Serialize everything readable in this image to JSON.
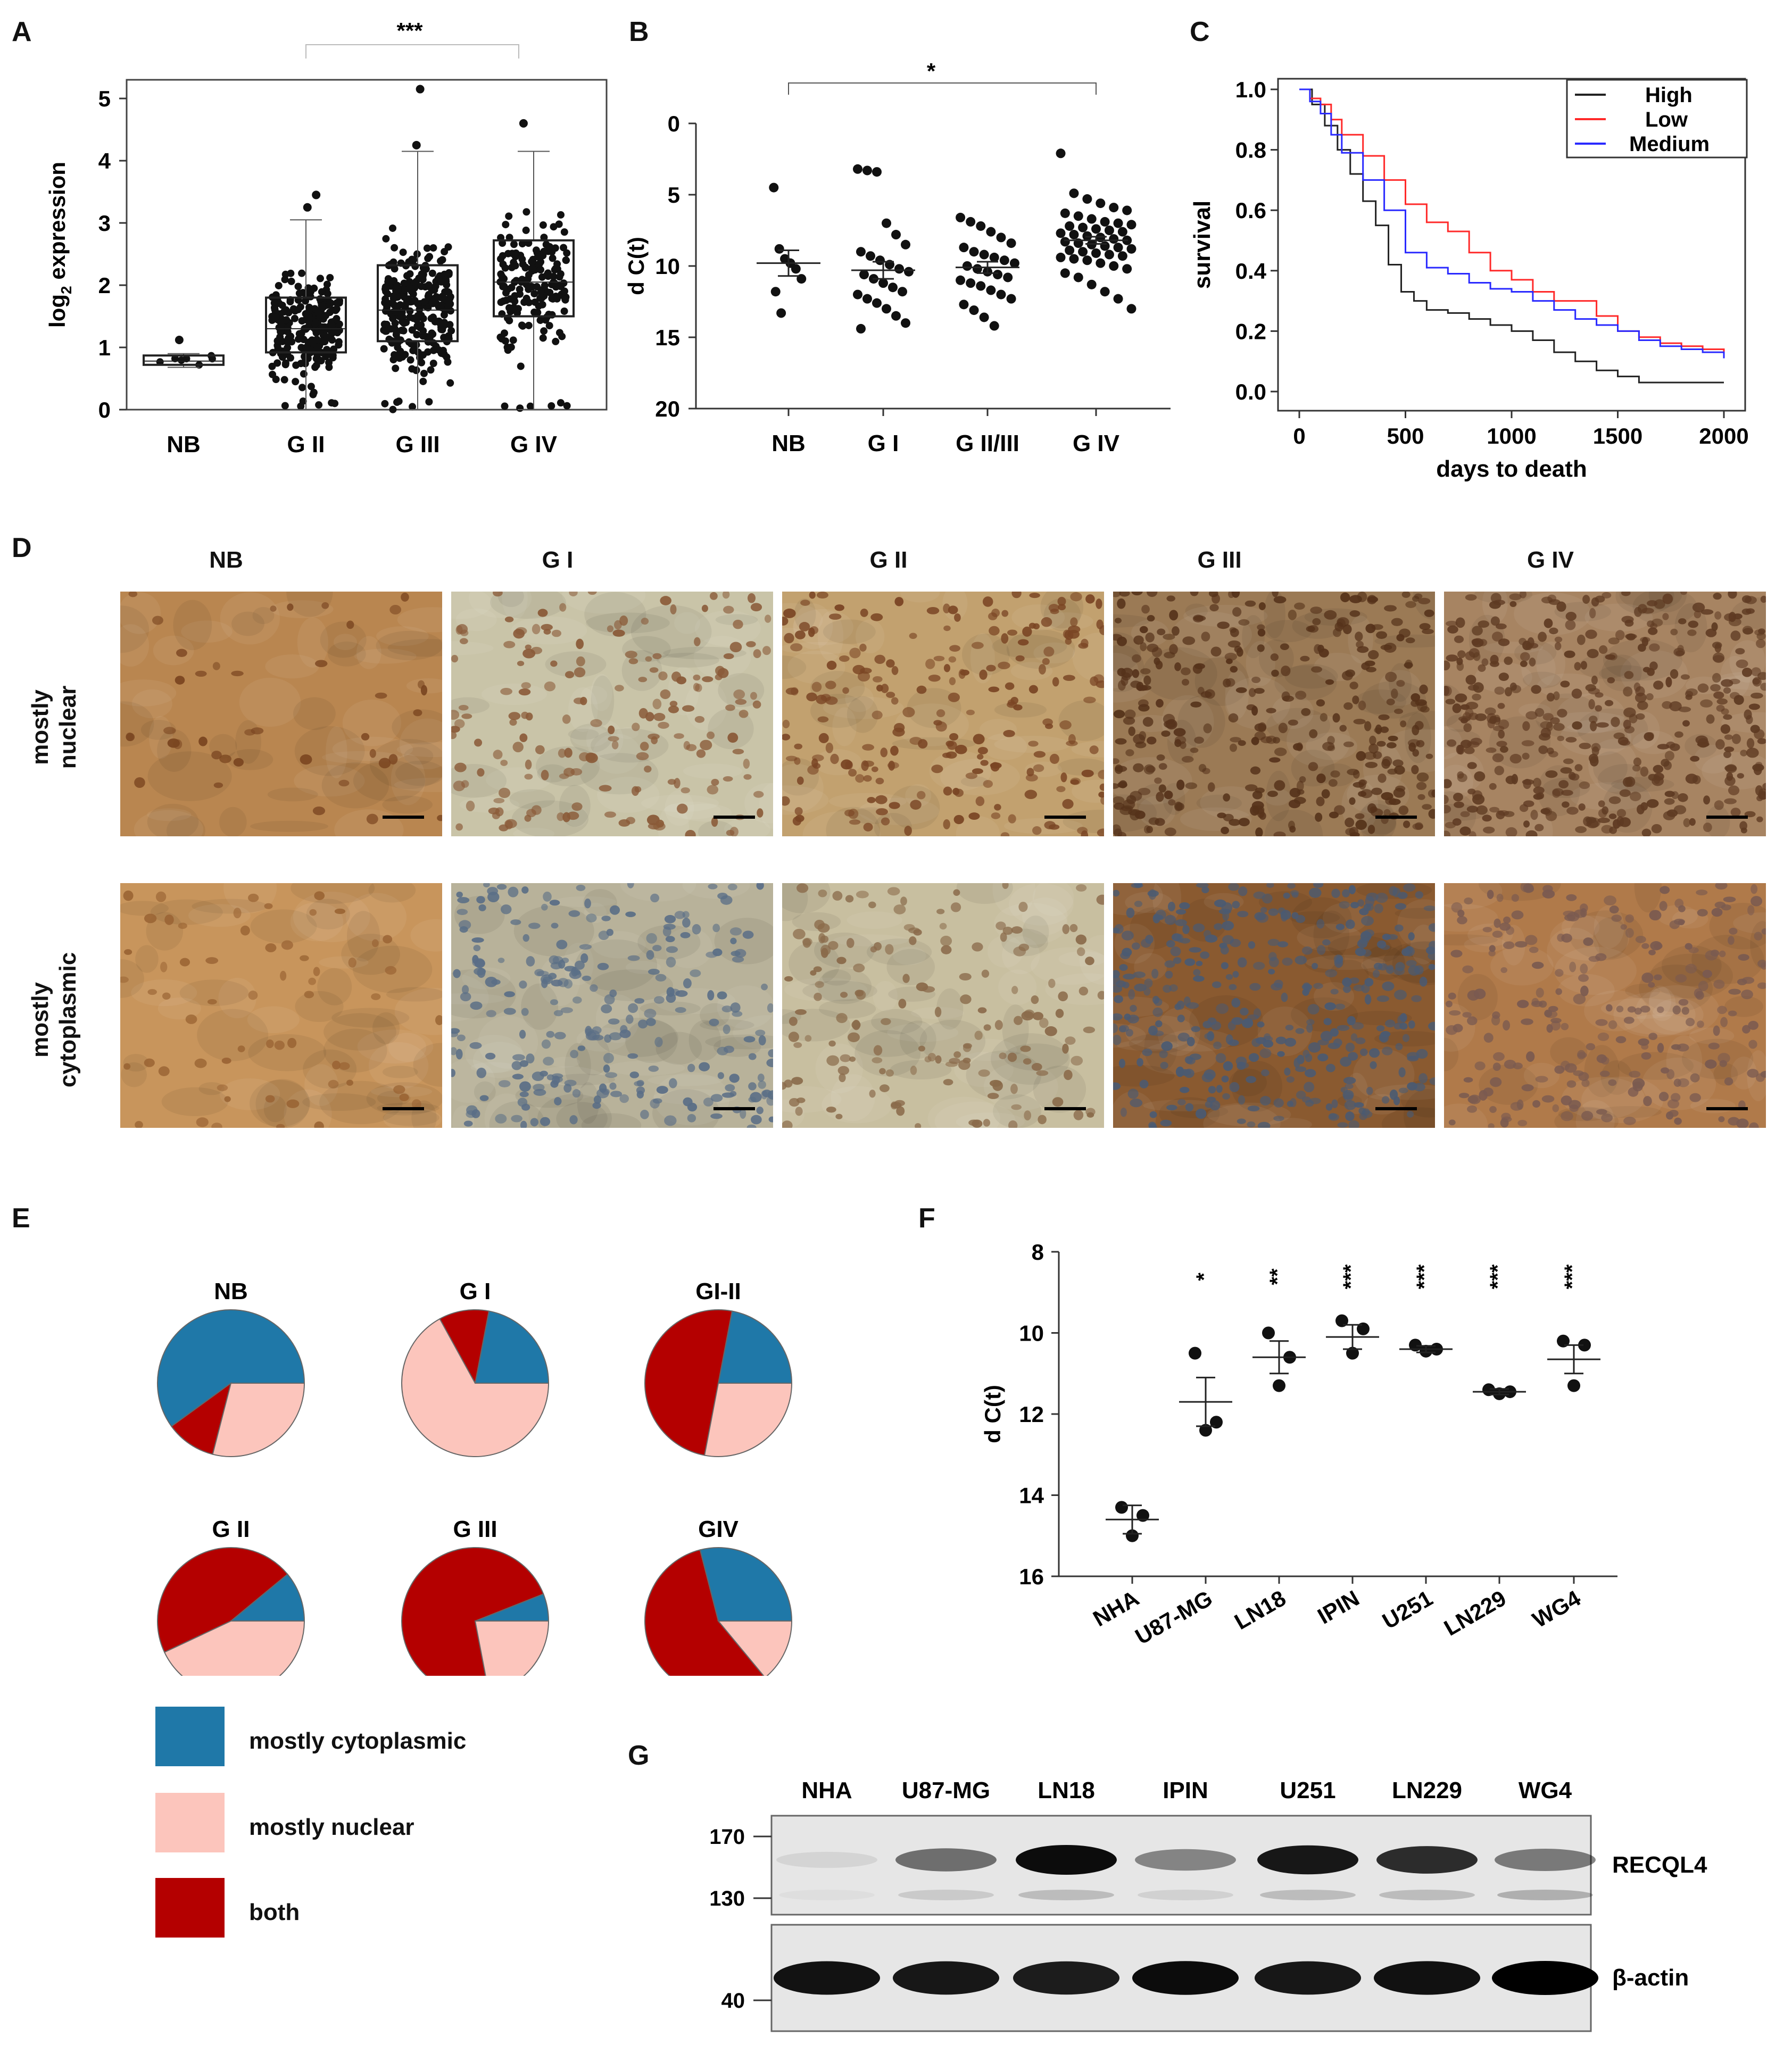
{
  "panel_labels": {
    "A": "A",
    "B": "B",
    "C": "C",
    "D": "D",
    "E": "E",
    "F": "F",
    "G": "G"
  },
  "colors": {
    "blue": "#1f78a8",
    "pink": "#fcc5bc",
    "red": "#b40000",
    "black": "#111111",
    "km_high": "#222222",
    "km_low": "#ff2a2a",
    "km_medium": "#2a2aff"
  },
  "chart_data": [
    {
      "id": "A",
      "type": "box",
      "ylabel_main": "log",
      "ylabel_sub": "2",
      "ylabel_rest": " expression",
      "categories": [
        "NB",
        "G II",
        "G III",
        "G IV"
      ],
      "yticks": [
        "0",
        "1",
        "2",
        "3",
        "4",
        "5"
      ],
      "ylim": [
        0,
        5.3
      ],
      "boxes": [
        {
          "q1": 0.72,
          "median": 0.78,
          "q3": 0.87,
          "wlo": 0.68,
          "whi": 0.9,
          "n": 7,
          "outliers": [
            1.12
          ]
        },
        {
          "q1": 0.92,
          "median": 1.3,
          "q3": 1.8,
          "wlo": 0.0,
          "whi": 3.05,
          "n": 230,
          "outliers": [
            3.25,
            3.45
          ]
        },
        {
          "q1": 1.1,
          "median": 1.6,
          "q3": 2.32,
          "wlo": 0.0,
          "whi": 4.15,
          "n": 260,
          "outliers": [
            4.25,
            5.15
          ]
        },
        {
          "q1": 1.5,
          "median": 2.05,
          "q3": 2.72,
          "wlo": 0.0,
          "whi": 4.15,
          "n": 170,
          "outliers": [
            4.6
          ]
        }
      ],
      "significance": "***"
    },
    {
      "id": "B",
      "type": "scatter",
      "ylabel": "d C(t)",
      "categories": [
        "NB",
        "G I",
        "G II/III",
        "G IV"
      ],
      "yticks": [
        "0",
        "5",
        "10",
        "15",
        "20"
      ],
      "ylim": [
        0,
        20
      ],
      "inverted": true,
      "means": [
        9.8,
        10.3,
        10.1,
        8.2
      ],
      "sems": [
        0.9,
        0.6,
        0.4,
        0.25
      ],
      "points": [
        [
          4.5,
          8.8,
          9.5,
          9.8,
          10.2,
          10.9,
          11.8,
          13.3
        ],
        [
          3.2,
          3.3,
          3.4,
          7.0,
          7.8,
          8.5,
          9.0,
          9.3,
          9.6,
          9.9,
          10.2,
          10.4,
          10.6,
          10.9,
          11.2,
          11.5,
          11.8,
          12.0,
          12.3,
          12.6,
          13.0,
          13.5,
          14.0,
          14.4
        ],
        [
          6.6,
          6.9,
          7.2,
          7.6,
          8.0,
          8.4,
          8.7,
          9.0,
          9.2,
          9.4,
          9.6,
          9.8,
          10.0,
          10.2,
          10.4,
          10.6,
          10.8,
          11.0,
          11.2,
          11.4,
          11.7,
          12.0,
          12.3,
          12.7,
          13.1,
          13.6,
          14.2
        ],
        [
          2.1,
          4.9,
          5.3,
          5.6,
          5.9,
          6.1,
          6.3,
          6.5,
          6.7,
          6.9,
          7.0,
          7.1,
          7.2,
          7.3,
          7.4,
          7.5,
          7.6,
          7.7,
          7.8,
          7.9,
          8.0,
          8.1,
          8.2,
          8.3,
          8.4,
          8.5,
          8.6,
          8.7,
          8.8,
          8.9,
          9.0,
          9.1,
          9.2,
          9.3,
          9.4,
          9.5,
          9.6,
          9.8,
          10.0,
          10.2,
          10.5,
          10.8,
          11.3,
          11.8,
          12.3,
          13.0
        ]
      ],
      "significance": "*"
    },
    {
      "id": "C",
      "type": "line",
      "xlabel": "days to death",
      "ylabel": "survival",
      "xticks": [
        "0",
        "500",
        "1000",
        "1500",
        "2000"
      ],
      "yticks": [
        "0.0",
        "0.2",
        "0.4",
        "0.6",
        "0.8",
        "1.0"
      ],
      "xlim": [
        0,
        2000
      ],
      "ylim": [
        0,
        1
      ],
      "legend": [
        "High",
        "Low",
        "Medium"
      ],
      "series": [
        {
          "name": "High",
          "x": [
            0,
            60,
            120,
            180,
            240,
            300,
            360,
            420,
            480,
            540,
            600,
            700,
            800,
            900,
            1000,
            1100,
            1200,
            1300,
            1400,
            1500,
            1600,
            1700,
            1800,
            1900,
            2000
          ],
          "y": [
            1.0,
            0.95,
            0.88,
            0.8,
            0.72,
            0.63,
            0.55,
            0.42,
            0.33,
            0.3,
            0.27,
            0.26,
            0.24,
            0.22,
            0.2,
            0.17,
            0.13,
            0.1,
            0.07,
            0.05,
            0.03,
            0.03,
            0.03,
            0.03,
            0.03
          ]
        },
        {
          "name": "Low",
          "x": [
            0,
            50,
            100,
            150,
            200,
            300,
            400,
            500,
            600,
            700,
            800,
            900,
            1000,
            1100,
            1200,
            1300,
            1400,
            1500,
            1600,
            1700,
            1800,
            1900,
            2000
          ],
          "y": [
            1.0,
            0.97,
            0.95,
            0.9,
            0.85,
            0.78,
            0.7,
            0.62,
            0.56,
            0.53,
            0.46,
            0.4,
            0.37,
            0.33,
            0.3,
            0.3,
            0.25,
            0.2,
            0.18,
            0.16,
            0.15,
            0.14,
            0.13
          ]
        },
        {
          "name": "Medium",
          "x": [
            0,
            50,
            100,
            150,
            200,
            300,
            400,
            500,
            600,
            700,
            800,
            900,
            1000,
            1100,
            1200,
            1300,
            1400,
            1500,
            1600,
            1700,
            1800,
            1900,
            2000
          ],
          "y": [
            1.0,
            0.96,
            0.92,
            0.85,
            0.79,
            0.7,
            0.6,
            0.46,
            0.41,
            0.39,
            0.36,
            0.34,
            0.33,
            0.3,
            0.27,
            0.24,
            0.22,
            0.2,
            0.17,
            0.15,
            0.14,
            0.13,
            0.11
          ]
        }
      ]
    },
    {
      "id": "E",
      "type": "pie",
      "charts": [
        {
          "title": "NB",
          "slices": [
            {
              "name": "mostly cytoplasmic",
              "value": 60
            },
            {
              "name": "both",
              "value": 11
            },
            {
              "name": "mostly nuclear",
              "value": 29
            }
          ]
        },
        {
          "title": "G I",
          "slices": [
            {
              "name": "mostly cytoplasmic",
              "value": 22
            },
            {
              "name": "both",
              "value": 11
            },
            {
              "name": "mostly nuclear",
              "value": 67
            }
          ]
        },
        {
          "title": "GI-II",
          "slices": [
            {
              "name": "mostly cytoplasmic",
              "value": 22
            },
            {
              "name": "both",
              "value": 50
            },
            {
              "name": "mostly nuclear",
              "value": 28
            }
          ]
        },
        {
          "title": "G II",
          "slices": [
            {
              "name": "mostly cytoplasmic",
              "value": 11
            },
            {
              "name": "both",
              "value": 46
            },
            {
              "name": "mostly nuclear",
              "value": 43
            }
          ]
        },
        {
          "title": "G III",
          "slices": [
            {
              "name": "mostly cytoplasmic",
              "value": 6
            },
            {
              "name": "both",
              "value": 72
            },
            {
              "name": "mostly nuclear",
              "value": 22
            }
          ]
        },
        {
          "title": "GIV",
          "slices": [
            {
              "name": "mostly cytoplasmic",
              "value": 29
            },
            {
              "name": "both",
              "value": 57
            },
            {
              "name": "mostly nuclear",
              "value": 14
            }
          ]
        }
      ],
      "legend": [
        {
          "label": "mostly cytoplasmic",
          "color": "#1f78a8"
        },
        {
          "label": "mostly nuclear",
          "color": "#fcc5bc"
        },
        {
          "label": "both",
          "color": "#b40000"
        }
      ]
    },
    {
      "id": "F",
      "type": "scatter",
      "ylabel": "d C(t)",
      "categories": [
        "NHA",
        "U87-MG",
        "LN18",
        "IPIN",
        "U251",
        "LN229",
        "WG4"
      ],
      "yticks": [
        "8",
        "10",
        "12",
        "14",
        "16"
      ],
      "ylim": [
        8,
        16
      ],
      "inverted": true,
      "means": [
        14.6,
        11.7,
        10.6,
        10.1,
        10.4,
        11.45,
        10.65
      ],
      "sems": [
        0.35,
        0.6,
        0.4,
        0.3,
        0.08,
        0.07,
        0.35
      ],
      "points": [
        [
          14.3,
          14.5,
          15.0
        ],
        [
          10.5,
          12.2,
          12.4
        ],
        [
          10.0,
          10.6,
          11.3
        ],
        [
          9.7,
          9.9,
          10.5
        ],
        [
          10.3,
          10.4,
          10.45
        ],
        [
          11.4,
          11.45,
          11.5
        ],
        [
          10.2,
          10.3,
          11.3
        ]
      ],
      "significance": [
        "",
        "*",
        "**",
        "***",
        "***",
        "***",
        "***"
      ]
    }
  ],
  "ihc": {
    "columns": [
      "NB",
      "G I",
      "G II",
      "G III",
      "G IV"
    ],
    "rows": [
      [
        "mostly",
        "nuclear"
      ],
      [
        "mostly",
        "cytoplasmic"
      ]
    ],
    "densities": [
      [
        40,
        180,
        220,
        360,
        420
      ],
      [
        60,
        260,
        160,
        380,
        240
      ]
    ],
    "tones": [
      [
        {
          "bg": "#b98650",
          "nuc": "#7a4520"
        },
        {
          "bg": "#c9c4a8",
          "nuc": "#8a5a38"
        },
        {
          "bg": "#c2a16f",
          "nuc": "#7a4524"
        },
        {
          "bg": "#9b7a55",
          "nuc": "#55321a"
        },
        {
          "bg": "#a78462",
          "nuc": "#5e3a22"
        }
      ],
      [
        {
          "bg": "#c8955c",
          "nuc": "#9a6434"
        },
        {
          "bg": "#b8b29a",
          "nuc": "#5a6e86"
        },
        {
          "bg": "#c8bfa0",
          "nuc": "#8a6a4a"
        },
        {
          "bg": "#8a5a30",
          "nuc": "#4a5a72"
        },
        {
          "bg": "#b07a4a",
          "nuc": "#7a5a50"
        }
      ]
    ]
  },
  "blot": {
    "lanes": [
      "NHA",
      "U87-MG",
      "LN18",
      "IPIN",
      "U251",
      "LN229",
      "WG4"
    ],
    "markers_top": [
      "170",
      "130"
    ],
    "markers_bottom": [
      "40"
    ],
    "proteins": [
      "RECQL4",
      "β-actin"
    ],
    "recql4_intensity": [
      0.08,
      0.55,
      1.0,
      0.45,
      0.95,
      0.85,
      0.5
    ],
    "recql4_upper_intensity": [
      0.05,
      0.2,
      0.3,
      0.15,
      0.3,
      0.3,
      0.4
    ],
    "actin_intensity": [
      0.92,
      0.9,
      0.88,
      0.95,
      0.9,
      0.93,
      1.0
    ]
  }
}
